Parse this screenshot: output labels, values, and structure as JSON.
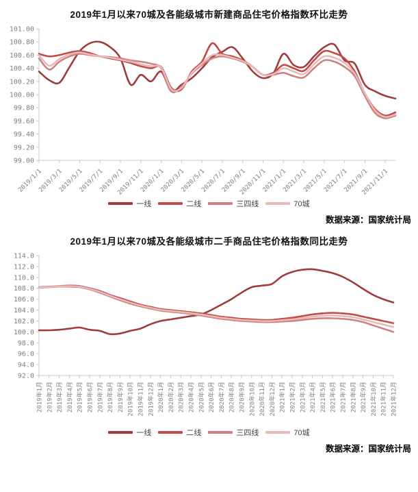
{
  "page": {
    "background": "#ffffff"
  },
  "legend_labels": [
    "一线",
    "二线",
    "三四线",
    "70城"
  ],
  "colors": {
    "tier1": "#9e3d3b",
    "tier2": "#c24a48",
    "tier34": "#ce8280",
    "cities70": "#e7bab8",
    "axis": "#c9c9c9",
    "tick_text": "#7f7f7f"
  },
  "chart_data": [
    {
      "type": "line",
      "title": "2019年1月以来70城及各能级城市新建商品住宅价格指数环比走势",
      "source_note": "数据来源：国家统计局",
      "xlabel": "",
      "ylabel": "",
      "grid": false,
      "legend_position": "bottom",
      "ylim": [
        99.0,
        101.0
      ],
      "y_step": 0.2,
      "y_decimals": 2,
      "x_tick_labels": [
        "2019/1/1",
        "2019/3/1",
        "2019/5/1",
        "2019/7/1",
        "2019/9/1",
        "2019/11/1",
        "2020/1/1",
        "2020/3/1",
        "2020/5/1",
        "2020/7/1",
        "2020/9/1",
        "2020/11/1",
        "2021/1/1",
        "2021/3/1",
        "2021/5/1",
        "2021/7/1",
        "2021/9/1",
        "2021/11/1"
      ],
      "x_months": [
        "2019/1",
        "2019/2",
        "2019/3",
        "2019/4",
        "2019/5",
        "2019/6",
        "2019/7",
        "2019/8",
        "2019/9",
        "2019/10",
        "2019/11",
        "2019/12",
        "2020/1",
        "2020/2",
        "2020/3",
        "2020/4",
        "2020/5",
        "2020/6",
        "2020/7",
        "2020/8",
        "2020/9",
        "2020/10",
        "2020/11",
        "2020/12",
        "2021/1",
        "2021/2",
        "2021/3",
        "2021/4",
        "2021/5",
        "2021/6",
        "2021/7",
        "2021/8",
        "2021/9",
        "2021/10",
        "2021/11",
        "2021/12"
      ],
      "series": [
        {
          "name": "一线",
          "color": "#9e3d3b",
          "values": [
            100.35,
            100.22,
            100.18,
            100.42,
            100.66,
            100.78,
            100.8,
            100.72,
            100.55,
            100.15,
            100.3,
            100.2,
            100.35,
            100.05,
            100.15,
            100.25,
            100.4,
            100.57,
            100.65,
            100.72,
            100.55,
            100.35,
            100.25,
            100.32,
            100.62,
            100.45,
            100.42,
            100.58,
            100.72,
            100.76,
            100.52,
            100.47,
            100.15,
            100.05,
            99.98,
            99.94
          ]
        },
        {
          "name": "二线",
          "color": "#c24a48",
          "values": [
            100.62,
            100.58,
            100.6,
            100.64,
            100.66,
            100.63,
            100.58,
            100.55,
            100.52,
            100.48,
            100.43,
            100.4,
            100.42,
            100.1,
            100.08,
            100.35,
            100.5,
            100.78,
            100.62,
            100.58,
            100.52,
            100.42,
            100.3,
            100.33,
            100.45,
            100.4,
            100.36,
            100.52,
            100.66,
            100.63,
            100.55,
            100.35,
            100.02,
            99.78,
            99.68,
            99.73
          ]
        },
        {
          "name": "三四线",
          "color": "#ce8280",
          "values": [
            100.55,
            100.38,
            100.5,
            100.58,
            100.62,
            100.6,
            100.58,
            100.57,
            100.55,
            100.52,
            100.5,
            100.47,
            100.4,
            100.05,
            100.12,
            100.32,
            100.45,
            100.55,
            100.58,
            100.55,
            100.5,
            100.42,
            100.3,
            100.3,
            100.33,
            100.28,
            100.26,
            100.4,
            100.52,
            100.5,
            100.42,
            100.28,
            99.98,
            99.72,
            99.64,
            99.68
          ]
        },
        {
          "name": "70城",
          "color": "#e7bab8",
          "values": [
            100.6,
            100.44,
            100.54,
            100.61,
            100.64,
            100.61,
            100.58,
            100.56,
            100.53,
            100.5,
            100.46,
            100.43,
            100.41,
            100.08,
            100.1,
            100.33,
            100.47,
            100.6,
            100.6,
            100.56,
            100.51,
            100.42,
            100.3,
            100.31,
            100.4,
            100.35,
            100.31,
            100.46,
            100.58,
            100.56,
            100.48,
            100.32,
            100.02,
            99.76,
            99.66,
            99.7
          ]
        }
      ]
    },
    {
      "type": "line",
      "title": "2019年1月以来70城及各能级城市二手商品住宅价格指数同比走势",
      "source_note": "数据来源：国家统计局",
      "xlabel": "",
      "ylabel": "",
      "grid": false,
      "legend_position": "bottom",
      "ylim": [
        92.0,
        114.0
      ],
      "y_step": 2,
      "y_decimals": 1,
      "x_tick_labels": [
        "2019年1月",
        "2019年2月",
        "2019年3月",
        "2019年4月",
        "2019年5月",
        "2019年6月",
        "2019年7月",
        "2019年8月",
        "2019年9月",
        "2019年10月",
        "2019年11月",
        "2019年12月",
        "2020年1月",
        "2020年2月",
        "2020年3月",
        "2020年4月",
        "2020年5月",
        "2020年6月",
        "2020年7月",
        "2020年8月",
        "2020年9月",
        "2020年10月",
        "2020年11月",
        "2020年12月",
        "2021年1月",
        "2021年2月",
        "2021年3月",
        "2021年4月",
        "2021年5月",
        "2021年6月",
        "2021年7月",
        "2021年8月",
        "2021年9月",
        "2021年10月",
        "2021年11月",
        "2021年12月"
      ],
      "x_months": [
        "2019/1",
        "2019/2",
        "2019/3",
        "2019/4",
        "2019/5",
        "2019/6",
        "2019/7",
        "2019/8",
        "2019/9",
        "2019/10",
        "2019/11",
        "2019/12",
        "2020/1",
        "2020/2",
        "2020/3",
        "2020/4",
        "2020/5",
        "2020/6",
        "2020/7",
        "2020/8",
        "2020/9",
        "2020/10",
        "2020/11",
        "2020/12",
        "2021/1",
        "2021/2",
        "2021/3",
        "2021/4",
        "2021/5",
        "2021/6",
        "2021/7",
        "2021/8",
        "2021/9",
        "2021/10",
        "2021/11",
        "2021/12"
      ],
      "series": [
        {
          "name": "一线",
          "color": "#9e3d3b",
          "values": [
            100.3,
            100.3,
            100.4,
            100.6,
            100.8,
            100.4,
            100.2,
            99.6,
            99.7,
            100.2,
            100.6,
            101.4,
            102.0,
            102.3,
            102.6,
            102.9,
            103.2,
            104.0,
            105.0,
            106.0,
            107.2,
            108.2,
            108.5,
            108.8,
            110.2,
            111.0,
            111.4,
            111.5,
            111.2,
            110.8,
            110.1,
            109.1,
            107.9,
            106.8,
            106.0,
            105.4
          ]
        },
        {
          "name": "二线",
          "color": "#c24a48",
          "values": [
            108.2,
            108.3,
            108.4,
            108.5,
            108.4,
            108.0,
            107.5,
            106.8,
            106.2,
            105.6,
            105.0,
            104.6,
            104.2,
            104.0,
            103.8,
            103.6,
            103.4,
            103.1,
            102.8,
            102.6,
            102.4,
            102.3,
            102.2,
            102.2,
            102.4,
            102.6,
            102.9,
            103.2,
            103.4,
            103.5,
            103.4,
            103.2,
            102.8,
            102.4,
            102.0,
            101.6
          ]
        },
        {
          "name": "三四线",
          "color": "#ce8280",
          "values": [
            108.1,
            108.2,
            108.3,
            108.3,
            108.2,
            107.8,
            107.2,
            106.5,
            105.8,
            105.2,
            104.7,
            104.3,
            103.9,
            103.7,
            103.5,
            103.3,
            103.0,
            102.7,
            102.4,
            102.2,
            102.0,
            101.9,
            101.8,
            101.8,
            101.9,
            102.0,
            102.2,
            102.4,
            102.5,
            102.5,
            102.4,
            102.2,
            101.8,
            101.2,
            100.6,
            100.0
          ]
        },
        {
          "name": "70城",
          "color": "#e7bab8",
          "values": [
            108.15,
            108.25,
            108.35,
            108.4,
            108.3,
            107.9,
            107.35,
            106.65,
            106.0,
            105.4,
            104.85,
            104.45,
            104.05,
            103.85,
            103.65,
            103.45,
            103.2,
            102.9,
            102.6,
            102.4,
            102.2,
            102.1,
            102.0,
            102.0,
            102.15,
            102.3,
            102.55,
            102.8,
            102.95,
            103.0,
            102.9,
            102.7,
            102.3,
            101.8,
            101.35,
            100.9
          ]
        }
      ]
    }
  ]
}
